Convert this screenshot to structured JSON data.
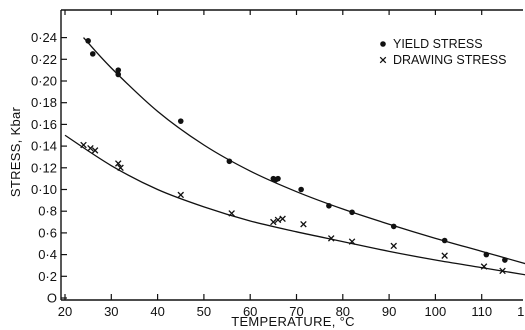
{
  "chart_data": {
    "type": "scatter",
    "title": "",
    "xlabel": "TEMPERATURE, °C",
    "ylabel": "STRESS, Kbar",
    "xlim": [
      20,
      128
    ],
    "ylim": [
      0,
      0.25
    ],
    "x_ticks": [
      20,
      30,
      40,
      50,
      60,
      70,
      80,
      90,
      100,
      110,
      120
    ],
    "x_tick_labels": [
      "20",
      "30",
      "40",
      "50",
      "60",
      "70",
      "80",
      "90",
      "100",
      "110",
      "120"
    ],
    "y_ticks": [
      0,
      0.02,
      0.04,
      0.06,
      0.08,
      0.1,
      0.12,
      0.14,
      0.16,
      0.18,
      0.2,
      0.22,
      0.24
    ],
    "y_tick_labels": [
      "O",
      "0·2",
      "0·4",
      "0·6",
      "0·8",
      "0·10",
      "0·12",
      "0·14",
      "0·16",
      "0·18",
      "0·20",
      "0·22",
      "0·24"
    ],
    "grid": false,
    "legend_position": "top-right",
    "series": [
      {
        "name": "YIELD STRESS",
        "marker": "dot",
        "points": [
          [
            25,
            0.237
          ],
          [
            26,
            0.225
          ],
          [
            31.5,
            0.21
          ],
          [
            31.5,
            0.206
          ],
          [
            45,
            0.163
          ],
          [
            55.5,
            0.126
          ],
          [
            65,
            0.11
          ],
          [
            65.5,
            0.109
          ],
          [
            66,
            0.11
          ],
          [
            71,
            0.1
          ],
          [
            77,
            0.085
          ],
          [
            82,
            0.079
          ],
          [
            91,
            0.066
          ],
          [
            102,
            0.053
          ],
          [
            111,
            0.04
          ],
          [
            115,
            0.035
          ],
          [
            123,
            0.028
          ],
          [
            126,
            0.023
          ]
        ],
        "fit": [
          [
            24,
            0.24
          ],
          [
            30,
            0.212
          ],
          [
            40,
            0.172
          ],
          [
            50,
            0.141
          ],
          [
            60,
            0.117
          ],
          [
            70,
            0.098
          ],
          [
            80,
            0.082
          ],
          [
            90,
            0.068
          ],
          [
            100,
            0.055
          ],
          [
            110,
            0.043
          ],
          [
            120,
            0.031
          ],
          [
            128,
            0.022
          ]
        ]
      },
      {
        "name": "DRAWING STRESS",
        "marker": "cross",
        "points": [
          [
            24,
            0.141
          ],
          [
            25.5,
            0.138
          ],
          [
            26.5,
            0.136
          ],
          [
            31.5,
            0.124
          ],
          [
            32,
            0.12
          ],
          [
            45,
            0.095
          ],
          [
            56,
            0.078
          ],
          [
            65,
            0.07
          ],
          [
            66,
            0.072
          ],
          [
            67,
            0.073
          ],
          [
            71.5,
            0.068
          ],
          [
            77.5,
            0.055
          ],
          [
            82,
            0.052
          ],
          [
            91,
            0.048
          ],
          [
            102,
            0.039
          ],
          [
            110.5,
            0.029
          ],
          [
            114.5,
            0.025
          ],
          [
            123,
            0.021
          ],
          [
            124,
            0.018
          ],
          [
            126,
            0.016
          ]
        ],
        "fit": [
          [
            20,
            0.15
          ],
          [
            30,
            0.122
          ],
          [
            40,
            0.1
          ],
          [
            50,
            0.084
          ],
          [
            60,
            0.071
          ],
          [
            70,
            0.061
          ],
          [
            80,
            0.052
          ],
          [
            90,
            0.043
          ],
          [
            100,
            0.035
          ],
          [
            110,
            0.028
          ],
          [
            120,
            0.021
          ],
          [
            128,
            0.016
          ]
        ]
      }
    ]
  }
}
